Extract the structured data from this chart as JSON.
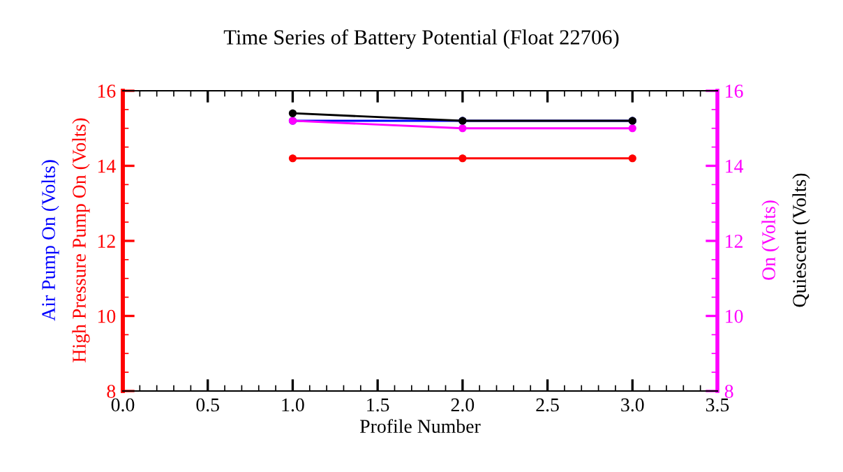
{
  "chart_data": {
    "type": "line",
    "title": "Time Series of Battery Potential (Float 22706)",
    "xlabel": "Profile Number",
    "x": [
      1,
      2,
      3
    ],
    "series": [
      {
        "name": "Air Pump On (Volts)",
        "color": "#0000ff",
        "values": [
          15.2,
          15.2,
          15.2
        ]
      },
      {
        "name": "High Pressure Pump On (Volts)",
        "color": "#ff0000",
        "values": [
          14.2,
          14.2,
          14.2
        ]
      },
      {
        "name": "On (Volts)",
        "color": "#ff00ff",
        "values": [
          15.2,
          15.0,
          15.0
        ],
        "axis": "y2"
      },
      {
        "name": "Quiescent (Volts)",
        "color": "#000000",
        "values": [
          15.4,
          15.2,
          15.2
        ],
        "axis": "y2"
      }
    ],
    "xlim": [
      0,
      3.5
    ],
    "xticks": [
      {
        "value": 0,
        "label": "0.0"
      },
      0.5,
      {
        "value": 1,
        "label": "1.0"
      },
      1.5,
      {
        "value": 2,
        "label": "2.0"
      },
      2.5,
      {
        "value": 3,
        "label": "3.0"
      },
      3.5
    ],
    "ylim": [
      8,
      16
    ],
    "yticks": [
      8,
      10,
      12,
      14,
      16
    ],
    "y2lim": [
      8,
      16
    ],
    "y2ticks": [
      8,
      10,
      12,
      14,
      16
    ],
    "grid": false,
    "legend": "right",
    "marker": "circle",
    "line_style": "solid"
  }
}
